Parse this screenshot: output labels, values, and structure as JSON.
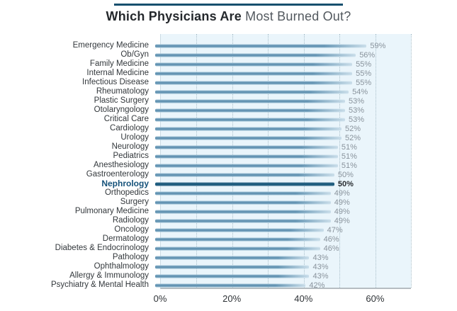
{
  "title": {
    "bold": "Which Physicians Are",
    "regular": " Most Burned Out?"
  },
  "chart_data": {
    "type": "bar",
    "orientation": "horizontal",
    "title": "Which Physicians Are Most Burned Out?",
    "xlabel": "",
    "ylabel": "",
    "xlim": [
      0,
      70
    ],
    "grid": "vertical-dotted",
    "x_ticks": [
      {
        "label": "0%",
        "value": 0
      },
      {
        "label": "20%",
        "value": 20
      },
      {
        "label": "40%",
        "value": 40
      },
      {
        "label": "60%",
        "value": 60
      }
    ],
    "gridline_values": [
      10,
      20,
      30,
      40,
      50,
      60,
      70
    ],
    "highlight_category": "Nephrology",
    "items": [
      {
        "label": "Emergency Medicine",
        "value": 59,
        "display": "59%"
      },
      {
        "label": "Ob/Gyn",
        "value": 56,
        "display": "56%"
      },
      {
        "label": "Family Medicine",
        "value": 55,
        "display": "55%"
      },
      {
        "label": "Internal Medicine",
        "value": 55,
        "display": "55%"
      },
      {
        "label": "Infectious Disease",
        "value": 55,
        "display": "55%"
      },
      {
        "label": "Rheumatology",
        "value": 54,
        "display": "54%"
      },
      {
        "label": "Plastic Surgery",
        "value": 53,
        "display": "53%"
      },
      {
        "label": "Otolaryngology",
        "value": 53,
        "display": "53%"
      },
      {
        "label": "Critical Care",
        "value": 53,
        "display": "53%"
      },
      {
        "label": "Cardiology",
        "value": 52,
        "display": "52%"
      },
      {
        "label": "Urology",
        "value": 52,
        "display": "52%"
      },
      {
        "label": "Neurology",
        "value": 51,
        "display": "51%"
      },
      {
        "label": "Pediatrics",
        "value": 51,
        "display": "51%"
      },
      {
        "label": "Anesthesiology",
        "value": 51,
        "display": "51%"
      },
      {
        "label": "Gastroenterology",
        "value": 50,
        "display": "50%"
      },
      {
        "label": "Nephrology",
        "value": 50,
        "display": "50%"
      },
      {
        "label": "Orthopedics",
        "value": 49,
        "display": "49%"
      },
      {
        "label": "Surgery",
        "value": 49,
        "display": "49%"
      },
      {
        "label": "Pulmonary Medicine",
        "value": 49,
        "display": "49%"
      },
      {
        "label": "Radiology",
        "value": 49,
        "display": "49%"
      },
      {
        "label": "Oncology",
        "value": 47,
        "display": "47%"
      },
      {
        "label": "Dermatology",
        "value": 46,
        "display": "46%"
      },
      {
        "label": "Diabetes & Endocrinology",
        "value": 46,
        "display": "46%"
      },
      {
        "label": "Pathology",
        "value": 43,
        "display": "43%"
      },
      {
        "label": "Ophthalmology",
        "value": 43,
        "display": "43%"
      },
      {
        "label": "Allergy & Immunology",
        "value": 43,
        "display": "43%"
      },
      {
        "label": "Psychiatry & Mental Health",
        "value": 42,
        "display": "42%"
      }
    ],
    "colors": {
      "bar": "#6494b3",
      "highlight_bar": "#1d5c7e",
      "highlight_label": "#15527a",
      "plot_bg": "#eaf5fb",
      "gridline": "#a9bfca",
      "value_text": "#89939c",
      "title_rule": "#17506e"
    }
  }
}
